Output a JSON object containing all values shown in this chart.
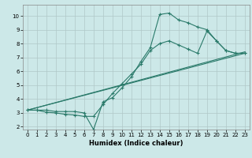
{
  "title": "",
  "xlabel": "Humidex (Indice chaleur)",
  "background_color": "#cce8e8",
  "grid_color": "#b0c8c8",
  "line_color": "#2a7a6a",
  "xlim": [
    -0.5,
    23.5
  ],
  "ylim": [
    1.8,
    10.8
  ],
  "xticks": [
    0,
    1,
    2,
    3,
    4,
    5,
    6,
    7,
    8,
    9,
    10,
    11,
    12,
    13,
    14,
    15,
    16,
    17,
    18,
    19,
    20,
    21,
    22,
    23
  ],
  "yticks": [
    2,
    3,
    4,
    5,
    6,
    7,
    8,
    9,
    10
  ],
  "line1_x": [
    0,
    1,
    2,
    3,
    4,
    5,
    6,
    7,
    8,
    9,
    10,
    11,
    12,
    13,
    14,
    15,
    16,
    17,
    18,
    19,
    20,
    21,
    22,
    23
  ],
  "line1_y": [
    3.2,
    3.2,
    3.2,
    3.1,
    3.1,
    3.1,
    3.0,
    1.8,
    3.8,
    4.1,
    4.8,
    5.6,
    6.7,
    7.7,
    10.1,
    10.2,
    9.7,
    9.5,
    9.2,
    9.0,
    8.2,
    7.5,
    7.3,
    7.3
  ],
  "line2_x": [
    0,
    1,
    2,
    3,
    4,
    5,
    6,
    7,
    8,
    9,
    10,
    11,
    12,
    13,
    14,
    15,
    16,
    17,
    18,
    19,
    20,
    21,
    22,
    23
  ],
  "line2_y": [
    3.2,
    3.2,
    3.05,
    3.0,
    2.9,
    2.85,
    2.75,
    2.75,
    3.6,
    4.4,
    5.1,
    5.8,
    6.5,
    7.5,
    8.0,
    8.2,
    7.9,
    7.6,
    7.3,
    8.9,
    8.2,
    7.5,
    7.3,
    7.3
  ],
  "line3_x": [
    0,
    23
  ],
  "line3_y": [
    3.2,
    7.3
  ],
  "line4_x": [
    0,
    23
  ],
  "line4_y": [
    3.2,
    7.4
  ]
}
